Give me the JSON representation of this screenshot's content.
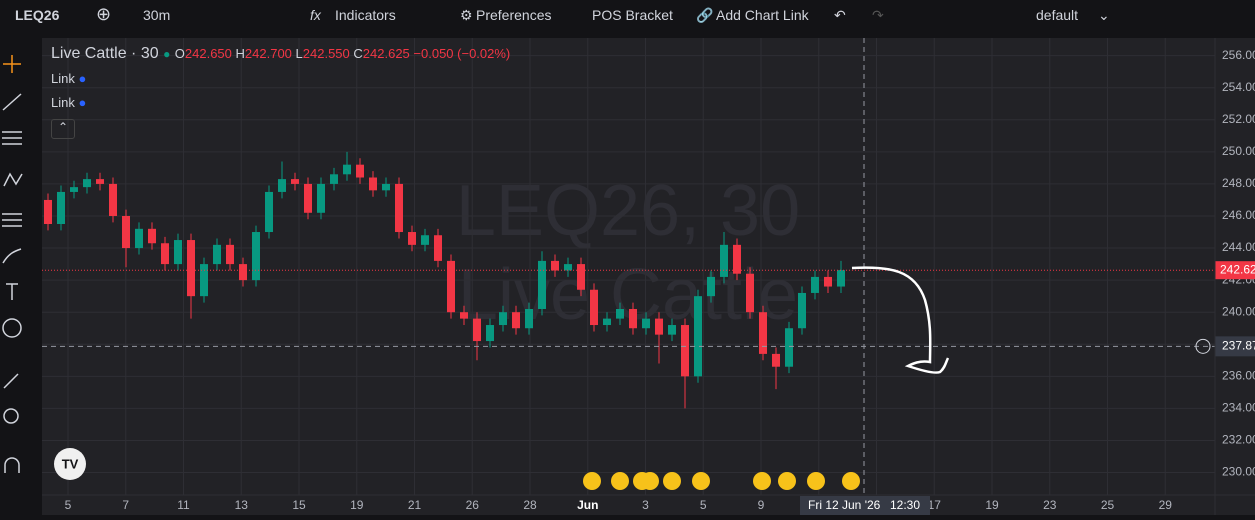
{
  "toolbar": {
    "symbol": "LEQ26",
    "interval": "30m",
    "indicators": "Indicators",
    "preferences": "Preferences",
    "pos_bracket": "POS Bracket",
    "chart_link": "Add Chart Link",
    "layout": "default"
  },
  "legend": {
    "title": "Live Cattle · 30",
    "o_label": "O",
    "o": "242.650",
    "h_label": "H",
    "h": "242.700",
    "l_label": "L",
    "l": "242.550",
    "c_label": "C",
    "c": "242.625",
    "change": "−0.050 (−0.02%)",
    "links": [
      "Link",
      "Link"
    ]
  },
  "watermark": [
    "LEQ26, 30",
    "Live Cattle"
  ],
  "chart_data": {
    "type": "candlestick",
    "ylim": [
      228.6,
      257.1
    ],
    "yticks": [
      {
        "value": 256,
        "label": "256.00"
      },
      {
        "value": 254,
        "label": "254.00"
      },
      {
        "value": 252,
        "label": "252.00"
      },
      {
        "value": 250,
        "label": "250.00"
      },
      {
        "value": 248,
        "label": "248.00"
      },
      {
        "value": 246,
        "label": "246.00"
      },
      {
        "value": 244,
        "label": "244.00"
      },
      {
        "value": 242,
        "label": "242.00"
      },
      {
        "value": 240,
        "label": "240.00"
      },
      {
        "value": 238,
        "label": "238.00"
      },
      {
        "value": 236,
        "label": "236.00"
      },
      {
        "value": 234,
        "label": "234.00"
      },
      {
        "value": 232,
        "label": "232.00"
      },
      {
        "value": 230,
        "label": "230.00"
      }
    ],
    "grid": true,
    "up_color": "#089981",
    "down_color": "#f23645",
    "last_price": 242.62,
    "crosshair_price": 237.87,
    "crosshair_time": "Fri 12 Jun '26",
    "crosshair_clock": "12:30",
    "time_ticks": [
      "5",
      "7",
      "11",
      "13",
      "15",
      "19",
      "21",
      "26",
      "28",
      "Jun",
      "3",
      "5",
      "9",
      null,
      null,
      "17",
      "19",
      "23",
      "25",
      "29"
    ],
    "candles": [
      [
        247.0,
        247.4,
        245.1,
        245.5
      ],
      [
        245.5,
        247.9,
        245.1,
        247.5
      ],
      [
        247.5,
        248.2,
        247.1,
        247.8
      ],
      [
        247.8,
        248.7,
        247.4,
        248.3
      ],
      [
        248.3,
        248.7,
        247.6,
        248.0
      ],
      [
        248.0,
        248.4,
        245.6,
        246.0
      ],
      [
        246.0,
        246.4,
        242.8,
        244.0
      ],
      [
        244.0,
        245.6,
        243.6,
        245.2
      ],
      [
        245.2,
        245.6,
        243.9,
        244.3
      ],
      [
        244.3,
        244.7,
        242.6,
        243.0
      ],
      [
        243.0,
        244.9,
        242.6,
        244.5
      ],
      [
        244.5,
        244.9,
        239.6,
        241.0
      ],
      [
        241.0,
        243.4,
        240.6,
        243.0
      ],
      [
        243.0,
        244.6,
        242.6,
        244.2
      ],
      [
        244.2,
        244.6,
        242.6,
        243.0
      ],
      [
        243.0,
        243.4,
        241.6,
        242.0
      ],
      [
        242.0,
        245.4,
        241.6,
        245.0
      ],
      [
        245.0,
        247.9,
        244.6,
        247.5
      ],
      [
        247.5,
        249.4,
        247.1,
        248.3
      ],
      [
        248.3,
        248.7,
        247.6,
        248.0
      ],
      [
        248.0,
        248.4,
        245.8,
        246.2
      ],
      [
        246.2,
        248.4,
        245.8,
        248.0
      ],
      [
        248.0,
        249.0,
        247.6,
        248.6
      ],
      [
        248.6,
        250.0,
        248.2,
        249.2
      ],
      [
        249.2,
        249.6,
        248.0,
        248.4
      ],
      [
        248.4,
        248.8,
        247.2,
        247.6
      ],
      [
        247.6,
        248.4,
        247.2,
        248.0
      ],
      [
        248.0,
        248.4,
        244.6,
        245.0
      ],
      [
        245.0,
        245.4,
        243.8,
        244.2
      ],
      [
        244.2,
        245.2,
        243.8,
        244.8
      ],
      [
        244.8,
        245.2,
        242.8,
        243.2
      ],
      [
        243.2,
        243.6,
        239.6,
        240.0
      ],
      [
        240.0,
        240.4,
        239.2,
        239.6
      ],
      [
        239.6,
        240.0,
        237.0,
        238.2
      ],
      [
        238.2,
        239.6,
        237.8,
        239.2
      ],
      [
        239.2,
        240.4,
        238.8,
        240.0
      ],
      [
        240.0,
        240.4,
        238.6,
        239.0
      ],
      [
        239.0,
        240.6,
        238.6,
        240.2
      ],
      [
        240.2,
        243.8,
        239.8,
        243.2
      ],
      [
        243.2,
        243.6,
        242.2,
        242.6
      ],
      [
        242.6,
        243.4,
        242.2,
        243.0
      ],
      [
        243.0,
        243.4,
        241.0,
        241.4
      ],
      [
        241.4,
        241.8,
        238.8,
        239.2
      ],
      [
        239.2,
        240.0,
        238.8,
        239.6
      ],
      [
        239.6,
        240.6,
        239.2,
        240.2
      ],
      [
        240.2,
        240.6,
        238.6,
        239.0
      ],
      [
        239.0,
        240.0,
        238.6,
        239.6
      ],
      [
        239.6,
        240.0,
        236.8,
        238.6
      ],
      [
        238.6,
        239.6,
        238.2,
        239.2
      ],
      [
        239.2,
        239.6,
        234.0,
        236.0
      ],
      [
        236.0,
        241.4,
        235.6,
        241.0
      ],
      [
        241.0,
        242.6,
        240.6,
        242.2
      ],
      [
        242.2,
        245.0,
        241.8,
        244.2
      ],
      [
        244.2,
        244.6,
        242.0,
        242.4
      ],
      [
        242.4,
        242.8,
        239.6,
        240.0
      ],
      [
        240.0,
        240.4,
        237.0,
        237.4
      ],
      [
        237.4,
        237.8,
        235.2,
        236.6
      ],
      [
        236.6,
        239.4,
        236.2,
        239.0
      ],
      [
        239.0,
        241.6,
        238.6,
        241.2
      ],
      [
        241.2,
        242.6,
        240.8,
        242.2
      ],
      [
        242.2,
        242.6,
        241.2,
        241.6
      ],
      [
        241.6,
        243.2,
        241.2,
        242.625
      ]
    ]
  }
}
